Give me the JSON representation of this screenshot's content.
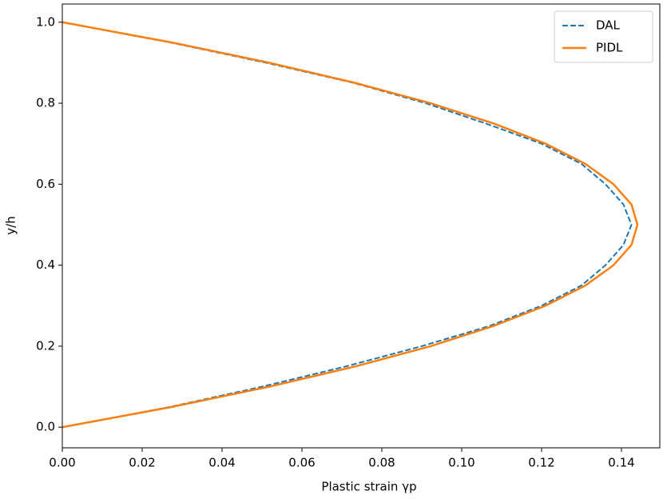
{
  "chart_data": {
    "type": "line",
    "x_label": "Plastic strain γp",
    "y_label": "y/h",
    "series": [
      {
        "name": "DAL",
        "color": "#1f77b4",
        "dashed": true,
        "x": [
          0,
          0.027,
          0.05,
          0.071,
          0.09,
          0.107,
          0.12,
          0.13,
          0.136,
          0.1405,
          0.1425,
          0.1405,
          0.136,
          0.13,
          0.12,
          0.106,
          0.091,
          0.073,
          0.051,
          0.027,
          0
        ],
        "values": [
          0,
          0.05,
          0.1,
          0.15,
          0.2,
          0.25,
          0.3,
          0.35,
          0.4,
          0.45,
          0.5,
          0.55,
          0.6,
          0.65,
          0.7,
          0.75,
          0.8,
          0.85,
          0.9,
          0.95,
          1
        ]
      },
      {
        "name": "PIDL",
        "color": "#ff7f0e",
        "dashed": false,
        "x": [
          0,
          0.0274,
          0.0518,
          0.0734,
          0.0922,
          0.108,
          0.121,
          0.131,
          0.138,
          0.1425,
          0.144,
          0.1425,
          0.138,
          0.131,
          0.121,
          0.108,
          0.0922,
          0.0734,
          0.0518,
          0.0274,
          0
        ],
        "values": [
          0,
          0.05,
          0.1,
          0.15,
          0.2,
          0.25,
          0.3,
          0.35,
          0.4,
          0.45,
          0.5,
          0.55,
          0.6,
          0.65,
          0.7,
          0.75,
          0.8,
          0.85,
          0.9,
          0.95,
          1
        ]
      }
    ],
    "xlim": [
      0,
      0.1496
    ],
    "ylim": [
      -0.051,
      1.045
    ],
    "xticks": [
      {
        "value": 0,
        "label": "0.00"
      },
      0.02,
      0.04,
      0.06,
      0.08,
      {
        "value": 0.1,
        "label": "0.10"
      },
      0.12,
      0.14
    ],
    "yticks": [
      {
        "value": 0,
        "label": "0.0"
      },
      0.2,
      0.4,
      0.6,
      0.8,
      {
        "value": 1,
        "label": "1.0"
      }
    ],
    "legend": "upper right"
  }
}
